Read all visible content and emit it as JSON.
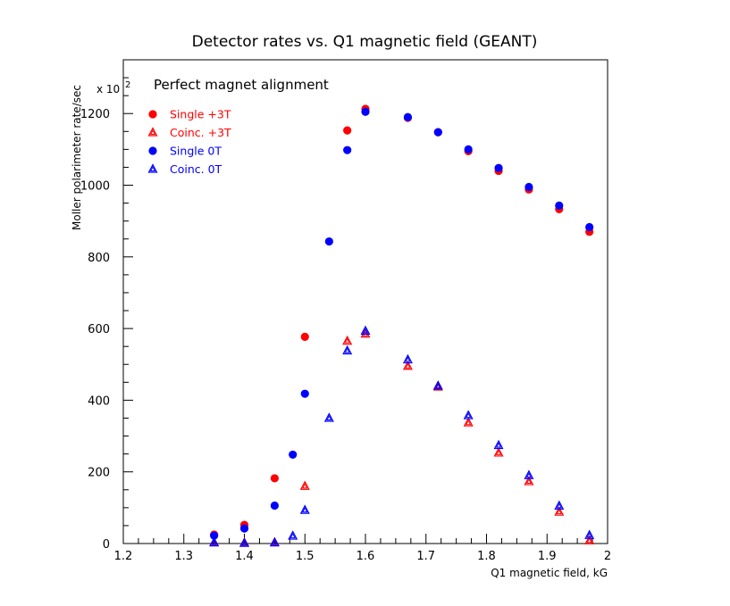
{
  "chart_data": {
    "type": "scatter",
    "title": "Detector rates vs. Q1 magnetic field (GEANT)",
    "xlabel": "Q1 magnetic field, kG",
    "ylabel": "Moller polarimeter rate/sec",
    "y_multiplier": "x 10",
    "y_multiplier_exp": "2",
    "annotation": "Perfect magnet alignment",
    "xlim": [
      1.2,
      2.0
    ],
    "ylim": [
      0,
      1350
    ],
    "x_ticks": [
      "1.2",
      "1.3",
      "1.4",
      "1.5",
      "1.6",
      "1.7",
      "1.8",
      "1.9",
      "2"
    ],
    "y_ticks": [
      "0",
      "200",
      "400",
      "600",
      "800",
      "1000",
      "1200"
    ],
    "legend_position": "top-left",
    "series": [
      {
        "name": "Single +3T",
        "color": "#ff0000",
        "marker": "circle",
        "points": [
          [
            1.35,
            25
          ],
          [
            1.4,
            52
          ],
          [
            1.45,
            182
          ],
          [
            1.5,
            577
          ],
          [
            1.57,
            1153
          ],
          [
            1.6,
            1213
          ],
          [
            1.67,
            1188
          ],
          [
            1.72,
            1148
          ],
          [
            1.77,
            1095
          ],
          [
            1.82,
            1040
          ],
          [
            1.87,
            988
          ],
          [
            1.92,
            933
          ],
          [
            1.97,
            870
          ]
        ]
      },
      {
        "name": "Coinc. +3T",
        "color": "#ff0000",
        "marker": "triangle",
        "points": [
          [
            1.35,
            3
          ],
          [
            1.4,
            2
          ],
          [
            1.45,
            3
          ],
          [
            1.5,
            160
          ],
          [
            1.57,
            565
          ],
          [
            1.6,
            585
          ],
          [
            1.67,
            495
          ],
          [
            1.72,
            437
          ],
          [
            1.77,
            337
          ],
          [
            1.82,
            253
          ],
          [
            1.87,
            173
          ],
          [
            1.92,
            88
          ],
          [
            1.97,
            8
          ]
        ]
      },
      {
        "name": "Single 0T",
        "color": "#0000ff",
        "marker": "circle",
        "points": [
          [
            1.35,
            22
          ],
          [
            1.4,
            42
          ],
          [
            1.45,
            106
          ],
          [
            1.48,
            248
          ],
          [
            1.5,
            418
          ],
          [
            1.54,
            843
          ],
          [
            1.57,
            1098
          ],
          [
            1.6,
            1205
          ],
          [
            1.67,
            1190
          ],
          [
            1.72,
            1148
          ],
          [
            1.77,
            1100
          ],
          [
            1.82,
            1048
          ],
          [
            1.87,
            995
          ],
          [
            1.92,
            943
          ],
          [
            1.97,
            883
          ]
        ]
      },
      {
        "name": "Coinc. 0T",
        "color": "#0000ff",
        "marker": "triangle",
        "points": [
          [
            1.35,
            2
          ],
          [
            1.4,
            1
          ],
          [
            1.45,
            2
          ],
          [
            1.48,
            21
          ],
          [
            1.5,
            93
          ],
          [
            1.54,
            350
          ],
          [
            1.57,
            538
          ],
          [
            1.6,
            593
          ],
          [
            1.67,
            513
          ],
          [
            1.72,
            440
          ],
          [
            1.77,
            357
          ],
          [
            1.82,
            274
          ],
          [
            1.87,
            190
          ],
          [
            1.92,
            105
          ],
          [
            1.97,
            23
          ]
        ]
      }
    ]
  }
}
